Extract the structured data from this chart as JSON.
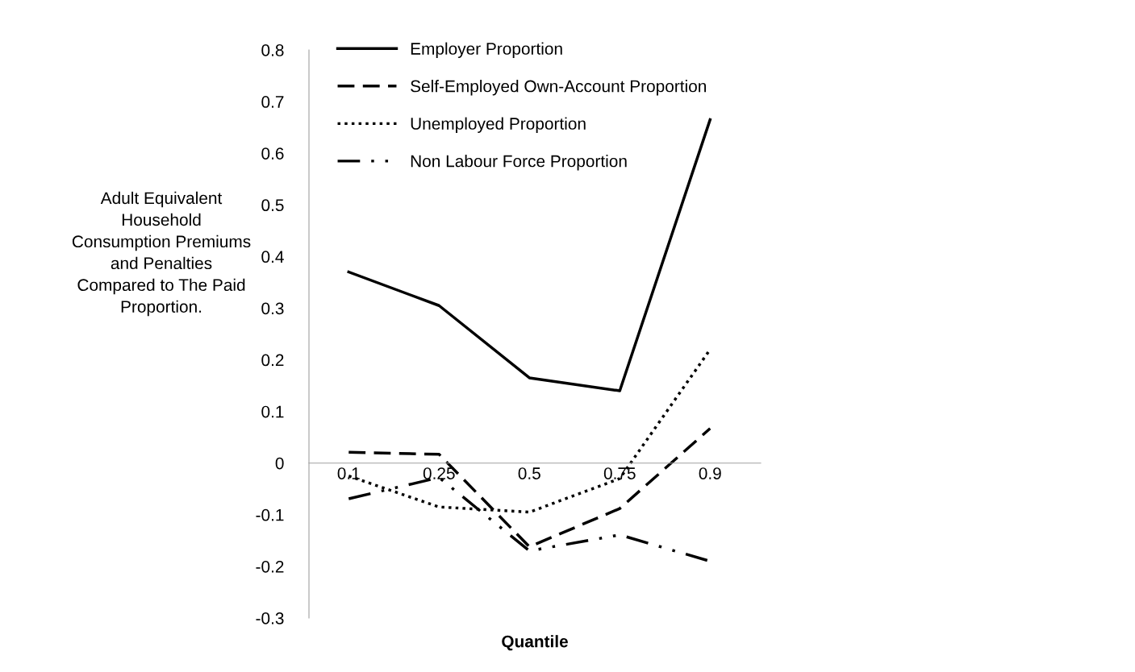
{
  "chart_data": {
    "type": "line",
    "xlabel": "Quantile",
    "ylabel": "Adult Equivalent\nHousehold\nConsumption Premiums\nand Penalties\nCompared to The Paid\nProportion.",
    "categories": [
      "0.1",
      "0.25",
      "0.5",
      "0.75",
      "0.9"
    ],
    "series": [
      {
        "name": "Employer Proportion",
        "color": "#000000",
        "line_style": "solid",
        "values": [
          0.37,
          0.305,
          0.165,
          0.14,
          0.665
        ]
      },
      {
        "name": "Self-Employed Own-Account Proportion",
        "color": "#000000",
        "line_style": "dashed",
        "values": [
          0.021,
          0.017,
          -0.162,
          -0.088,
          0.067
        ]
      },
      {
        "name": "Unemployed Proportion",
        "color": "#000000",
        "line_style": "dotted",
        "values": [
          -0.025,
          -0.085,
          -0.095,
          -0.03,
          0.22
        ]
      },
      {
        "name": "Non Labour Force Proportion",
        "color": "#000000",
        "line_style": "dashdot",
        "values": [
          -0.069,
          -0.028,
          -0.17,
          -0.139,
          -0.19
        ]
      }
    ],
    "ylim": [
      -0.3,
      0.8
    ],
    "yticks": [
      -0.3,
      -0.2,
      -0.1,
      0,
      0.1,
      0.2,
      0.3,
      0.4,
      0.5,
      0.6,
      0.7,
      0.8
    ],
    "grid": false,
    "legend": "top left",
    "marker": "none"
  }
}
